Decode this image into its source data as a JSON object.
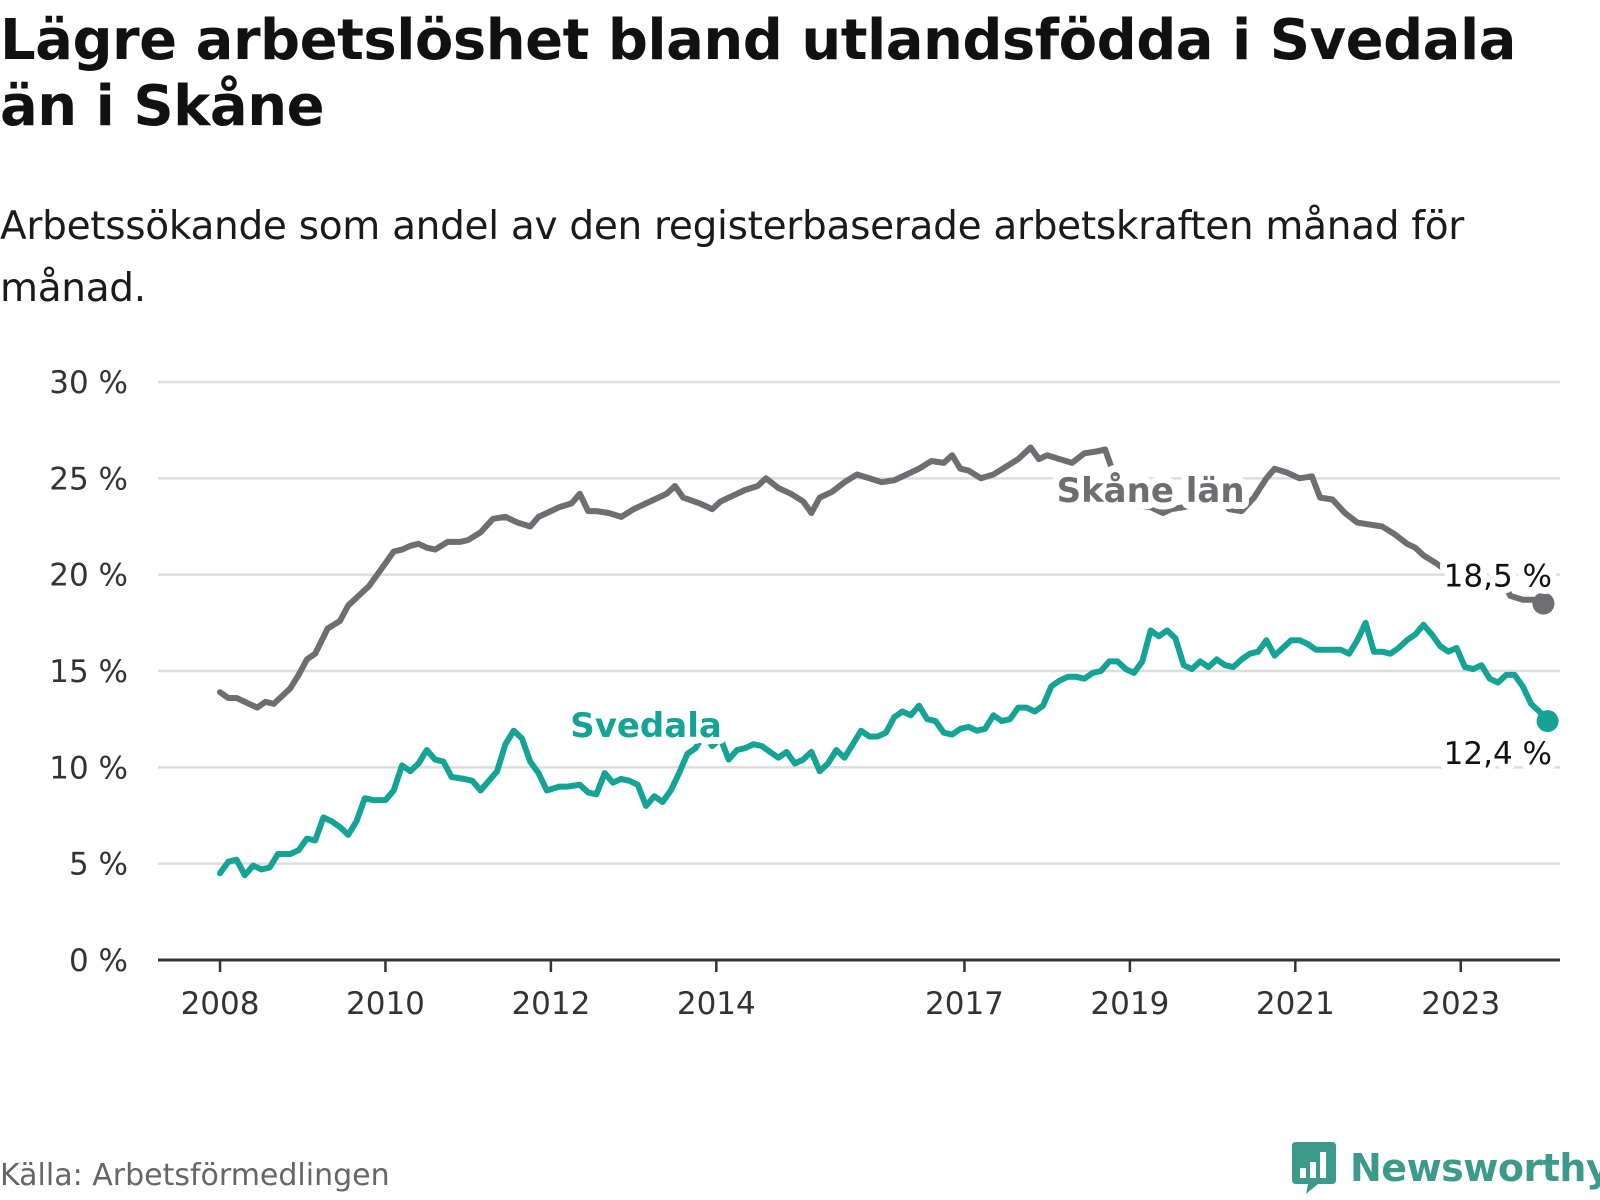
{
  "title": "Lägre arbetslöshet bland utlandsfödda i Svedala än i Skåne",
  "subtitle": "Arbetssökande som andel av den registerbaserade arbetskraften månad för månad.",
  "source": "Källa: Arbetsförmedlingen",
  "brand": "Newsworthy",
  "colors": {
    "skane": "#6e6d72",
    "svedala": "#14a394",
    "grid": "#dddddd",
    "axis": "#333333"
  },
  "chart_data": {
    "type": "line",
    "title": "Lägre arbetslöshet bland utlandsfödda i Svedala än i Skåne",
    "xlabel": "",
    "ylabel": "",
    "ylim": [
      0,
      30
    ],
    "yticks": [
      0,
      5,
      10,
      15,
      20,
      25,
      30
    ],
    "ytick_labels": [
      "0 %",
      "5 %",
      "10 %",
      "15 %",
      "20 %",
      "25 %",
      "30 %"
    ],
    "xlim": [
      2007.25,
      2024.2
    ],
    "xticks": [
      2008,
      2010,
      2012,
      2014,
      2017,
      2019,
      2021,
      2023
    ],
    "xtick_labels": [
      "2008",
      "2010",
      "2012",
      "2014",
      "2017",
      "2019",
      "2021",
      "2023"
    ],
    "series": [
      {
        "name": "Skåne län",
        "label": "Skåne län",
        "end_label": "18,5 %",
        "points": [
          [
            2008.0,
            13.9
          ],
          [
            2008.1,
            13.6
          ],
          [
            2008.2,
            13.6
          ],
          [
            2008.35,
            13.3
          ],
          [
            2008.45,
            13.1
          ],
          [
            2008.55,
            13.4
          ],
          [
            2008.65,
            13.3
          ],
          [
            2008.75,
            13.7
          ],
          [
            2008.85,
            14.1
          ],
          [
            2008.95,
            14.8
          ],
          [
            2009.05,
            15.6
          ],
          [
            2009.15,
            15.9
          ],
          [
            2009.3,
            17.2
          ],
          [
            2009.45,
            17.6
          ],
          [
            2009.55,
            18.4
          ],
          [
            2009.7,
            19.0
          ],
          [
            2009.8,
            19.4
          ],
          [
            2009.9,
            20.0
          ],
          [
            2010.0,
            20.6
          ],
          [
            2010.1,
            21.2
          ],
          [
            2010.2,
            21.3
          ],
          [
            2010.3,
            21.5
          ],
          [
            2010.4,
            21.6
          ],
          [
            2010.5,
            21.4
          ],
          [
            2010.6,
            21.3
          ],
          [
            2010.75,
            21.7
          ],
          [
            2010.9,
            21.7
          ],
          [
            2011.0,
            21.8
          ],
          [
            2011.15,
            22.2
          ],
          [
            2011.3,
            22.9
          ],
          [
            2011.45,
            23.0
          ],
          [
            2011.6,
            22.7
          ],
          [
            2011.75,
            22.5
          ],
          [
            2011.85,
            23.0
          ],
          [
            2012.0,
            23.3
          ],
          [
            2012.1,
            23.5
          ],
          [
            2012.25,
            23.7
          ],
          [
            2012.35,
            24.2
          ],
          [
            2012.45,
            23.3
          ],
          [
            2012.55,
            23.3
          ],
          [
            2012.7,
            23.2
          ],
          [
            2012.85,
            23.0
          ],
          [
            2013.0,
            23.4
          ],
          [
            2013.15,
            23.7
          ],
          [
            2013.3,
            24.0
          ],
          [
            2013.4,
            24.2
          ],
          [
            2013.5,
            24.6
          ],
          [
            2013.6,
            24.0
          ],
          [
            2013.8,
            23.7
          ],
          [
            2013.95,
            23.4
          ],
          [
            2014.05,
            23.8
          ],
          [
            2014.2,
            24.1
          ],
          [
            2014.35,
            24.4
          ],
          [
            2014.5,
            24.6
          ],
          [
            2014.6,
            25.0
          ],
          [
            2014.75,
            24.5
          ],
          [
            2014.9,
            24.2
          ],
          [
            2015.05,
            23.8
          ],
          [
            2015.15,
            23.2
          ],
          [
            2015.25,
            24.0
          ],
          [
            2015.4,
            24.3
          ],
          [
            2015.55,
            24.8
          ],
          [
            2015.7,
            25.2
          ],
          [
            2015.85,
            25.0
          ],
          [
            2016.0,
            24.8
          ],
          [
            2016.15,
            24.9
          ],
          [
            2016.3,
            25.2
          ],
          [
            2016.45,
            25.5
          ],
          [
            2016.6,
            25.9
          ],
          [
            2016.75,
            25.8
          ],
          [
            2016.85,
            26.2
          ],
          [
            2016.95,
            25.5
          ],
          [
            2017.05,
            25.4
          ],
          [
            2017.2,
            25.0
          ],
          [
            2017.35,
            25.2
          ],
          [
            2017.5,
            25.6
          ],
          [
            2017.65,
            26.0
          ],
          [
            2017.8,
            26.6
          ],
          [
            2017.9,
            26.0
          ],
          [
            2018.0,
            26.2
          ],
          [
            2018.15,
            26.0
          ],
          [
            2018.3,
            25.8
          ],
          [
            2018.45,
            26.3
          ],
          [
            2018.6,
            26.4
          ],
          [
            2018.7,
            26.5
          ],
          [
            2018.8,
            25.3
          ],
          [
            2018.95,
            24.6
          ],
          [
            2019.1,
            23.6
          ],
          [
            2019.25,
            23.5
          ],
          [
            2019.4,
            23.2
          ],
          [
            2019.5,
            23.4
          ],
          [
            2019.65,
            23.5
          ],
          [
            2019.8,
            23.7
          ],
          [
            2019.95,
            23.9
          ],
          [
            2020.1,
            24.2
          ],
          [
            2020.2,
            23.4
          ],
          [
            2020.35,
            23.3
          ],
          [
            2020.5,
            24.0
          ],
          [
            2020.65,
            25.0
          ],
          [
            2020.75,
            25.5
          ],
          [
            2020.9,
            25.3
          ],
          [
            2021.05,
            25.0
          ],
          [
            2021.2,
            25.1
          ],
          [
            2021.3,
            24.0
          ],
          [
            2021.45,
            23.9
          ],
          [
            2021.6,
            23.2
          ],
          [
            2021.75,
            22.7
          ],
          [
            2021.9,
            22.6
          ],
          [
            2022.05,
            22.5
          ],
          [
            2022.2,
            22.1
          ],
          [
            2022.35,
            21.6
          ],
          [
            2022.45,
            21.4
          ],
          [
            2022.55,
            21.0
          ],
          [
            2022.7,
            20.6
          ],
          [
            2022.8,
            20.3
          ],
          [
            2022.95,
            20.0
          ],
          [
            2023.1,
            19.6
          ],
          [
            2023.25,
            19.3
          ],
          [
            2023.35,
            19.5
          ],
          [
            2023.5,
            19.7
          ],
          [
            2023.6,
            18.9
          ],
          [
            2023.75,
            18.7
          ],
          [
            2023.9,
            18.7
          ],
          [
            2024.0,
            18.5
          ]
        ]
      },
      {
        "name": "Svedala",
        "label": "Svedala",
        "end_label": "12,4 %",
        "points": [
          [
            2008.0,
            4.5
          ],
          [
            2008.1,
            5.1
          ],
          [
            2008.2,
            5.2
          ],
          [
            2008.3,
            4.4
          ],
          [
            2008.4,
            4.9
          ],
          [
            2008.5,
            4.7
          ],
          [
            2008.6,
            4.8
          ],
          [
            2008.7,
            5.5
          ],
          [
            2008.85,
            5.5
          ],
          [
            2008.95,
            5.7
          ],
          [
            2009.05,
            6.3
          ],
          [
            2009.15,
            6.2
          ],
          [
            2009.25,
            7.4
          ],
          [
            2009.35,
            7.2
          ],
          [
            2009.45,
            6.9
          ],
          [
            2009.55,
            6.5
          ],
          [
            2009.65,
            7.2
          ],
          [
            2009.75,
            8.4
          ],
          [
            2009.85,
            8.3
          ],
          [
            2010.0,
            8.3
          ],
          [
            2010.1,
            8.8
          ],
          [
            2010.2,
            10.1
          ],
          [
            2010.3,
            9.8
          ],
          [
            2010.4,
            10.2
          ],
          [
            2010.5,
            10.9
          ],
          [
            2010.6,
            10.4
          ],
          [
            2010.7,
            10.3
          ],
          [
            2010.8,
            9.5
          ],
          [
            2010.95,
            9.4
          ],
          [
            2011.05,
            9.3
          ],
          [
            2011.15,
            8.8
          ],
          [
            2011.25,
            9.3
          ],
          [
            2011.35,
            9.8
          ],
          [
            2011.45,
            11.2
          ],
          [
            2011.55,
            11.9
          ],
          [
            2011.65,
            11.5
          ],
          [
            2011.75,
            10.3
          ],
          [
            2011.85,
            9.7
          ],
          [
            2011.95,
            8.8
          ],
          [
            2012.1,
            9.0
          ],
          [
            2012.2,
            9.0
          ],
          [
            2012.35,
            9.1
          ],
          [
            2012.45,
            8.7
          ],
          [
            2012.55,
            8.6
          ],
          [
            2012.65,
            9.7
          ],
          [
            2012.75,
            9.2
          ],
          [
            2012.85,
            9.4
          ],
          [
            2012.95,
            9.3
          ],
          [
            2013.05,
            9.1
          ],
          [
            2013.15,
            8.0
          ],
          [
            2013.25,
            8.5
          ],
          [
            2013.35,
            8.2
          ],
          [
            2013.45,
            8.8
          ],
          [
            2013.55,
            9.7
          ],
          [
            2013.65,
            10.7
          ],
          [
            2013.75,
            11.0
          ],
          [
            2013.85,
            11.7
          ],
          [
            2013.95,
            11.1
          ],
          [
            2014.05,
            11.5
          ],
          [
            2014.15,
            10.4
          ],
          [
            2014.25,
            10.9
          ],
          [
            2014.35,
            11.0
          ],
          [
            2014.45,
            11.2
          ],
          [
            2014.55,
            11.1
          ],
          [
            2014.65,
            10.8
          ],
          [
            2014.75,
            10.5
          ],
          [
            2014.85,
            10.8
          ],
          [
            2014.95,
            10.2
          ],
          [
            2015.05,
            10.4
          ],
          [
            2015.15,
            10.8
          ],
          [
            2015.25,
            9.8
          ],
          [
            2015.35,
            10.2
          ],
          [
            2015.45,
            10.9
          ],
          [
            2015.55,
            10.5
          ],
          [
            2015.65,
            11.2
          ],
          [
            2015.75,
            11.9
          ],
          [
            2015.85,
            11.6
          ],
          [
            2015.95,
            11.6
          ],
          [
            2016.05,
            11.8
          ],
          [
            2016.15,
            12.6
          ],
          [
            2016.25,
            12.9
          ],
          [
            2016.35,
            12.7
          ],
          [
            2016.45,
            13.2
          ],
          [
            2016.55,
            12.5
          ],
          [
            2016.65,
            12.4
          ],
          [
            2016.75,
            11.8
          ],
          [
            2016.85,
            11.7
          ],
          [
            2016.95,
            12.0
          ],
          [
            2017.05,
            12.1
          ],
          [
            2017.15,
            11.9
          ],
          [
            2017.25,
            12.0
          ],
          [
            2017.35,
            12.7
          ],
          [
            2017.45,
            12.4
          ],
          [
            2017.55,
            12.5
          ],
          [
            2017.65,
            13.1
          ],
          [
            2017.75,
            13.1
          ],
          [
            2017.85,
            12.9
          ],
          [
            2017.95,
            13.2
          ],
          [
            2018.05,
            14.2
          ],
          [
            2018.15,
            14.5
          ],
          [
            2018.25,
            14.7
          ],
          [
            2018.35,
            14.7
          ],
          [
            2018.45,
            14.6
          ],
          [
            2018.55,
            14.9
          ],
          [
            2018.65,
            15.0
          ],
          [
            2018.75,
            15.5
          ],
          [
            2018.85,
            15.5
          ],
          [
            2018.95,
            15.1
          ],
          [
            2019.05,
            14.9
          ],
          [
            2019.15,
            15.5
          ],
          [
            2019.25,
            17.1
          ],
          [
            2019.35,
            16.8
          ],
          [
            2019.45,
            17.1
          ],
          [
            2019.55,
            16.7
          ],
          [
            2019.65,
            15.3
          ],
          [
            2019.75,
            15.1
          ],
          [
            2019.85,
            15.5
          ],
          [
            2019.95,
            15.2
          ],
          [
            2020.05,
            15.6
          ],
          [
            2020.15,
            15.3
          ],
          [
            2020.25,
            15.2
          ],
          [
            2020.35,
            15.6
          ],
          [
            2020.45,
            15.9
          ],
          [
            2020.55,
            16.0
          ],
          [
            2020.65,
            16.6
          ],
          [
            2020.75,
            15.8
          ],
          [
            2020.85,
            16.2
          ],
          [
            2020.95,
            16.6
          ],
          [
            2021.05,
            16.6
          ],
          [
            2021.15,
            16.4
          ],
          [
            2021.25,
            16.1
          ],
          [
            2021.35,
            16.1
          ],
          [
            2021.45,
            16.1
          ],
          [
            2021.55,
            16.1
          ],
          [
            2021.65,
            15.9
          ],
          [
            2021.75,
            16.6
          ],
          [
            2021.85,
            17.5
          ],
          [
            2021.95,
            16.0
          ],
          [
            2022.05,
            16.0
          ],
          [
            2022.15,
            15.9
          ],
          [
            2022.25,
            16.2
          ],
          [
            2022.35,
            16.6
          ],
          [
            2022.45,
            16.9
          ],
          [
            2022.55,
            17.4
          ],
          [
            2022.65,
            16.9
          ],
          [
            2022.75,
            16.3
          ],
          [
            2022.85,
            16.0
          ],
          [
            2022.95,
            16.2
          ],
          [
            2023.05,
            15.2
          ],
          [
            2023.15,
            15.1
          ],
          [
            2023.25,
            15.3
          ],
          [
            2023.35,
            14.6
          ],
          [
            2023.45,
            14.4
          ],
          [
            2023.55,
            14.8
          ],
          [
            2023.65,
            14.8
          ],
          [
            2023.75,
            14.2
          ],
          [
            2023.85,
            13.3
          ],
          [
            2023.95,
            12.9
          ],
          [
            2024.05,
            12.4
          ]
        ]
      }
    ]
  }
}
